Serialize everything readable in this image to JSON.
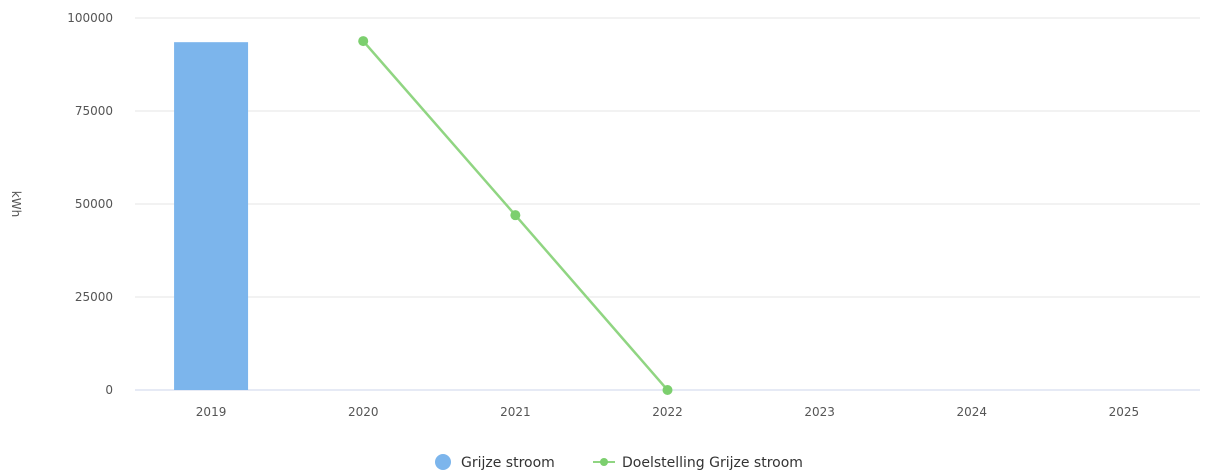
{
  "chart_data": {
    "type": "bar",
    "categories": [
      "2019",
      "2020",
      "2021",
      "2022",
      "2023",
      "2024",
      "2025"
    ],
    "ylabel": "kWh",
    "ylim": [
      0,
      100000
    ],
    "yticks": [
      0,
      25000,
      50000,
      75000,
      100000
    ],
    "grid": true,
    "legend_position": "bottom-center",
    "series": [
      {
        "name": "Grijze stroom",
        "type": "bar",
        "color": "#7cb5ec",
        "values": [
          93500,
          null,
          null,
          null,
          null,
          null,
          null
        ]
      },
      {
        "name": "Doelstelling Grijze stroom",
        "type": "line",
        "color": "#90d582",
        "marker_color": "#7ccf6e",
        "values": [
          null,
          93800,
          47000,
          0,
          null,
          null,
          null
        ]
      }
    ]
  }
}
